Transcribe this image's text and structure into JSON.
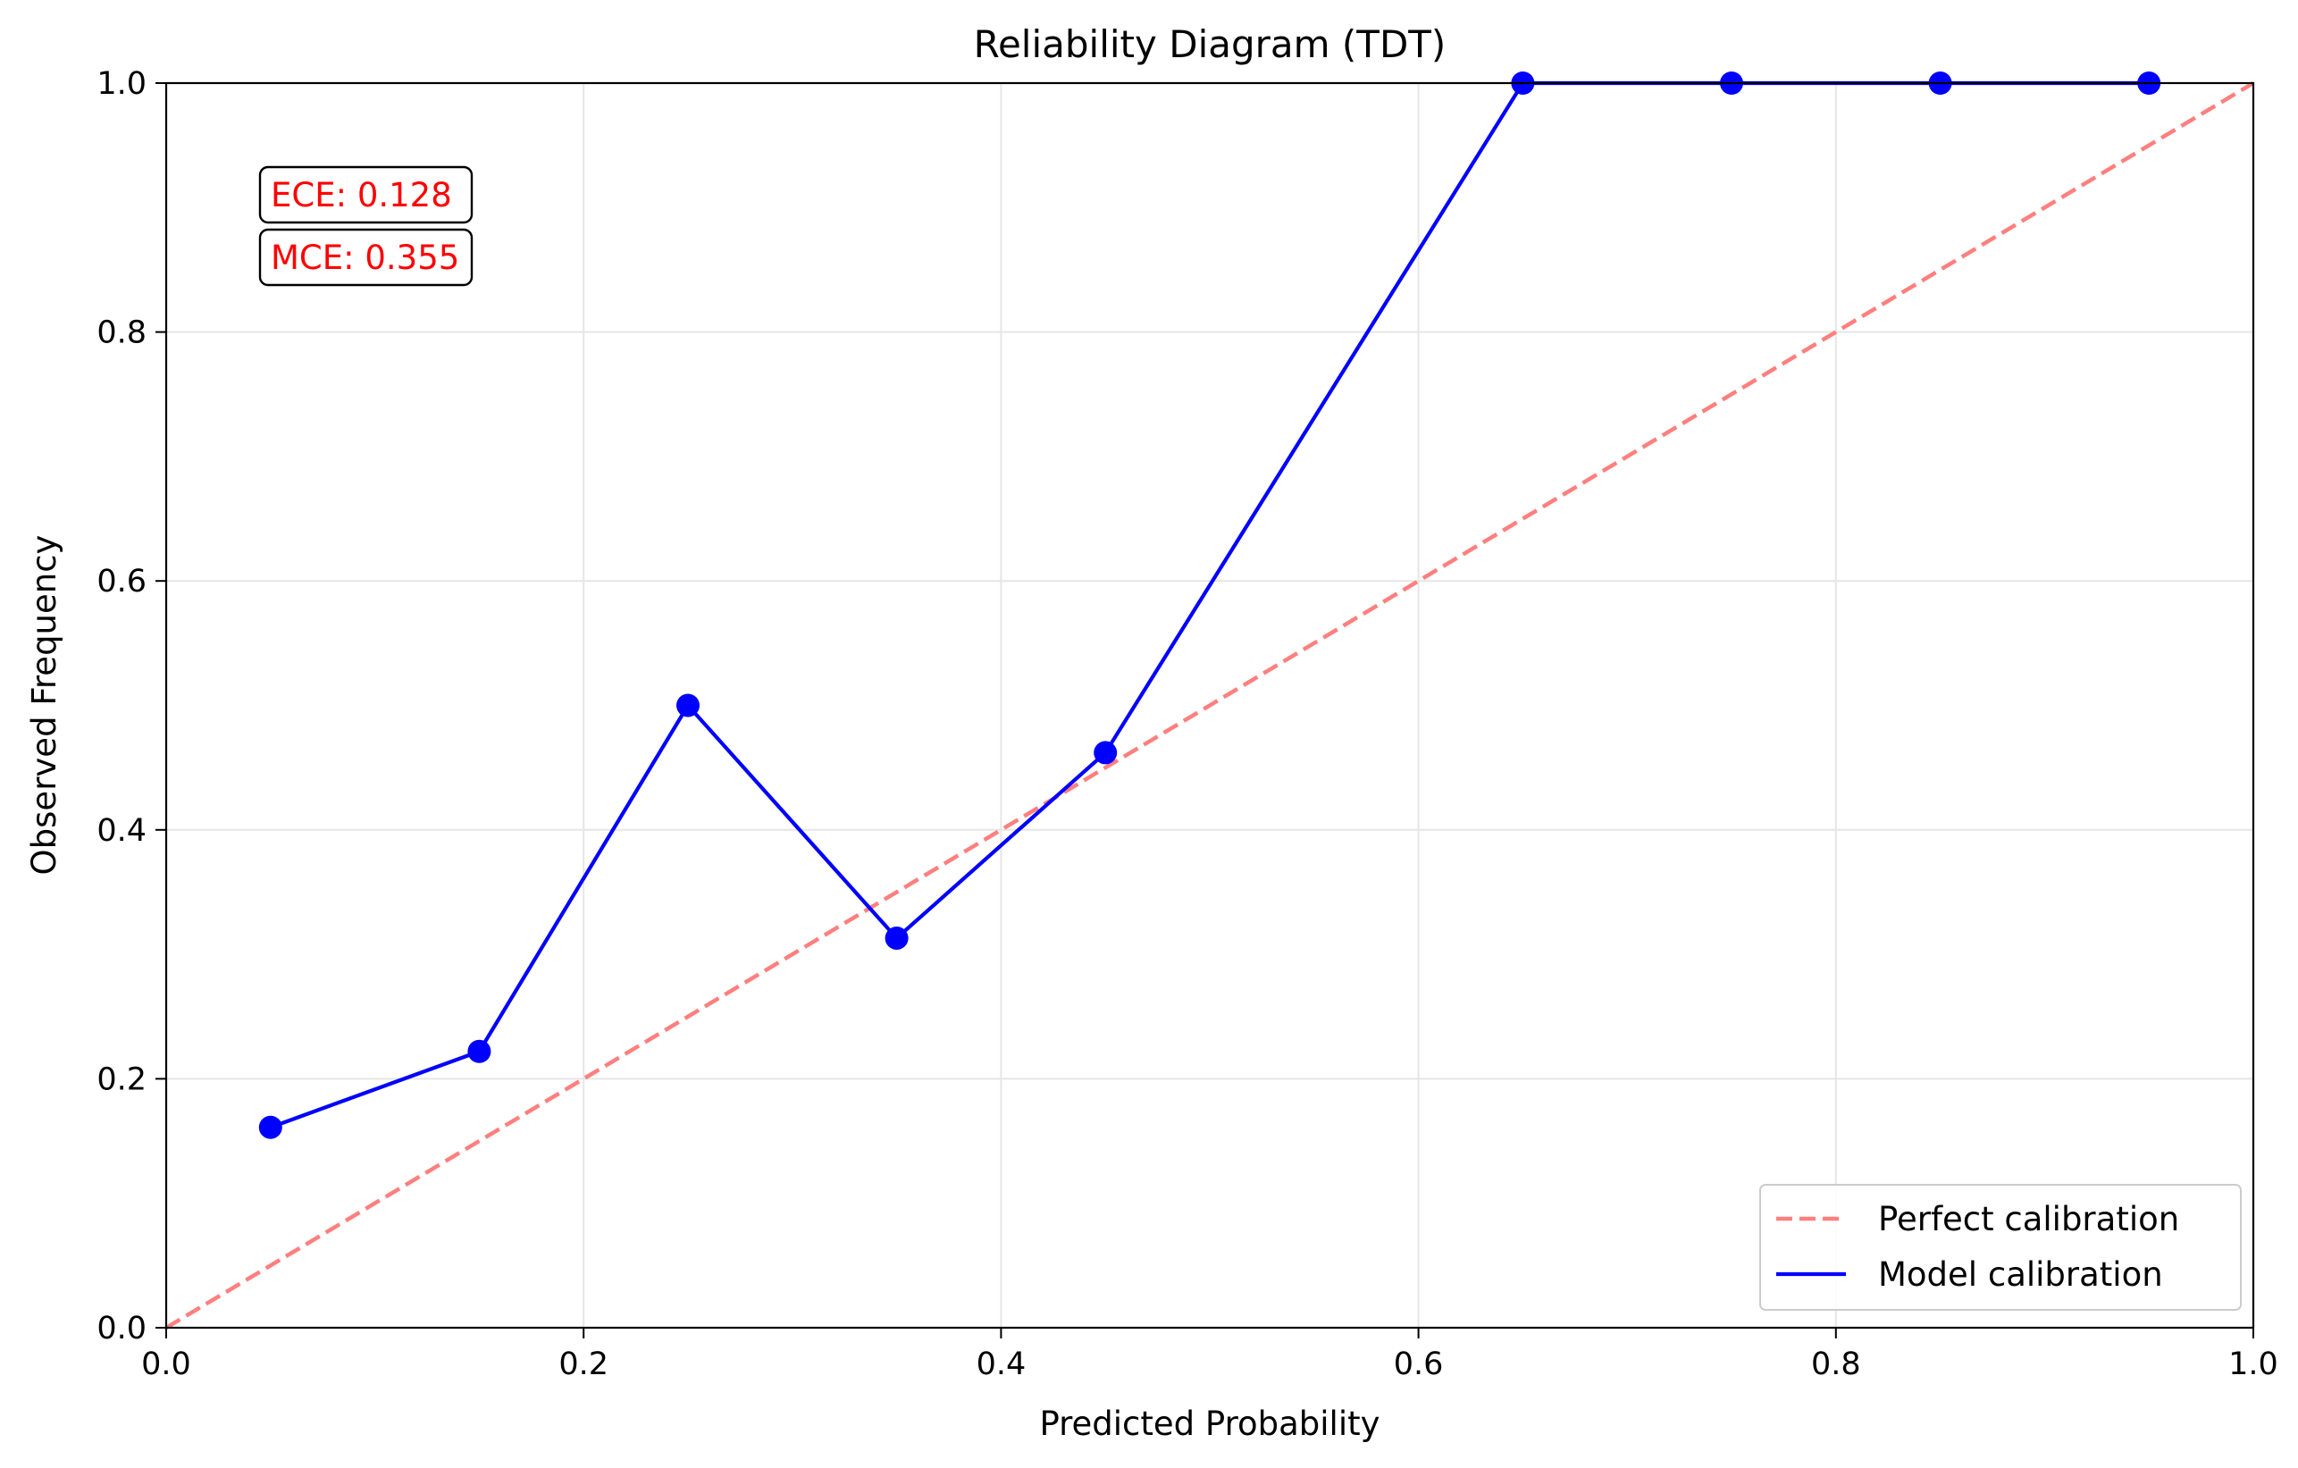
{
  "chart_data": {
    "type": "line",
    "title": "Reliability Diagram (TDT)",
    "xlabel": "Predicted Probability",
    "ylabel": "Observed Frequency",
    "xlim": [
      0.0,
      1.0
    ],
    "ylim": [
      0.0,
      1.0
    ],
    "x_ticks": [
      "0.0",
      "0.2",
      "0.4",
      "0.6",
      "0.8",
      "1.0"
    ],
    "y_ticks": [
      "0.0",
      "0.2",
      "0.4",
      "0.6",
      "0.8",
      "1.0"
    ],
    "grid": true,
    "legend_position": "bottom-right",
    "series": [
      {
        "name": "Perfect calibration",
        "style": "dashed",
        "color": "#ff7f7f",
        "x": [
          0.0,
          1.0
        ],
        "y": [
          0.0,
          1.0
        ]
      },
      {
        "name": "Model calibration",
        "style": "solid-markers",
        "color": "#0000ff",
        "x": [
          0.05,
          0.15,
          0.25,
          0.35,
          0.45,
          0.65,
          0.75,
          0.85,
          0.95
        ],
        "y": [
          0.161,
          0.222,
          0.5,
          0.313,
          0.462,
          1.0,
          1.0,
          1.0,
          1.0
        ]
      }
    ],
    "annotations": [
      {
        "text": "ECE: 0.128",
        "color": "#ff0000"
      },
      {
        "text": "MCE: 0.355",
        "color": "#ff0000"
      }
    ]
  }
}
